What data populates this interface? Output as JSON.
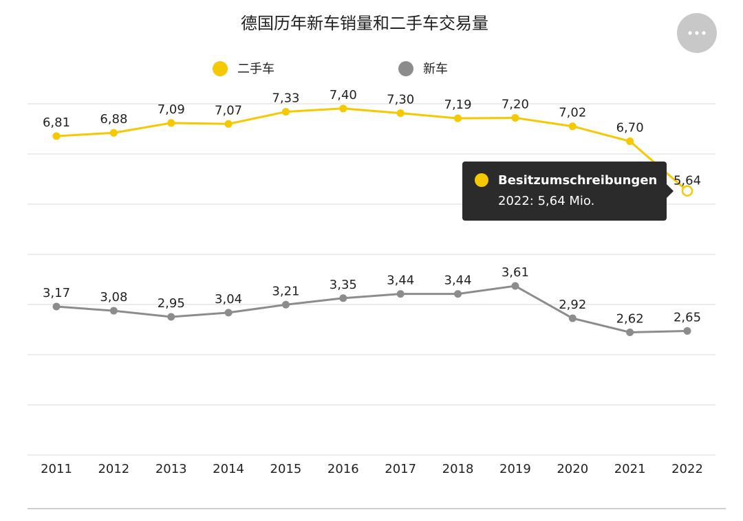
{
  "chart_data": {
    "type": "line",
    "title": "德国历年新车销量和二手车交易量",
    "categories": [
      "2011",
      "2012",
      "2013",
      "2014",
      "2015",
      "2016",
      "2017",
      "2018",
      "2019",
      "2020",
      "2021",
      "2022"
    ],
    "ylim": [
      0,
      7.5
    ],
    "series": [
      {
        "name": "二手车",
        "color": "#f5c800",
        "values": [
          6.81,
          6.88,
          7.09,
          7.07,
          7.33,
          7.4,
          7.3,
          7.19,
          7.2,
          7.02,
          6.7,
          5.64
        ],
        "value_labels": [
          "6,81",
          "6,88",
          "7,09",
          "7,07",
          "7,33",
          "7,40",
          "7,30",
          "7,19",
          "7,20",
          "7,02",
          "6,70",
          "5,64"
        ]
      },
      {
        "name": "新车",
        "color": "#8c8c8c",
        "values": [
          3.17,
          3.08,
          2.95,
          3.04,
          3.21,
          3.35,
          3.44,
          3.44,
          3.61,
          2.92,
          2.62,
          2.65
        ],
        "value_labels": [
          "3,17",
          "3,08",
          "2,95",
          "3,04",
          "3,21",
          "3,35",
          "3,44",
          "3,44",
          "3,61",
          "2,92",
          "2,62",
          "2,65"
        ]
      }
    ],
    "tooltip": {
      "title": "Besitzumschreibungen",
      "text": "2022: 5,64 Mio."
    }
  }
}
